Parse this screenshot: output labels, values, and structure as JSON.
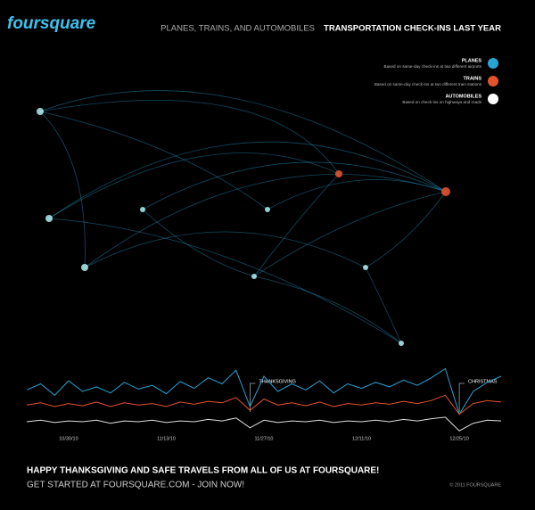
{
  "header": {
    "logo": "foursquare",
    "subtitle": "PLANES, TRAINS, AND AUTOMOBILES",
    "title": "TRANSPORTATION CHECK-INS LAST YEAR"
  },
  "legend": [
    {
      "name": "PLANES",
      "description": "Based on same-day check-ins at two different airports",
      "color": "#29a3d3"
    },
    {
      "name": "TRAINS",
      "description": "Based on same-day check-ins at two different train stations",
      "color": "#e2532b"
    },
    {
      "name": "AUTOMOBILES",
      "description": "Based on check-ins on highways and roads",
      "color": "#ffffff"
    }
  ],
  "chart_data": {
    "type": "line",
    "categories": [
      null,
      null,
      null,
      "10/30/10",
      null,
      null,
      null,
      null,
      null,
      null,
      "11/13/10",
      null,
      null,
      null,
      null,
      null,
      null,
      "11/27/10",
      null,
      null,
      null,
      null,
      null,
      null,
      "12/11/10",
      null,
      null,
      null,
      null,
      null,
      null,
      "12/25/10",
      null,
      null,
      null
    ],
    "ylim": [
      0,
      100
    ],
    "series": [
      {
        "name": "PLANES",
        "color": "#29a3d3",
        "values": [
          62,
          70,
          55,
          74,
          60,
          66,
          58,
          72,
          63,
          68,
          57,
          73,
          64,
          78,
          70,
          88,
          40,
          80,
          60,
          70,
          62,
          74,
          58,
          70,
          64,
          72,
          66,
          75,
          68,
          78,
          90,
          30,
          60,
          72,
          80
        ]
      },
      {
        "name": "TRAINS",
        "color": "#e2532b",
        "values": [
          42,
          45,
          40,
          44,
          41,
          46,
          40,
          45,
          42,
          44,
          40,
          46,
          43,
          47,
          45,
          52,
          35,
          50,
          42,
          45,
          41,
          46,
          40,
          44,
          42,
          45,
          43,
          47,
          44,
          48,
          55,
          30,
          44,
          48,
          46
        ]
      },
      {
        "name": "AUTOMOBILES",
        "color": "#dddddd",
        "values": [
          20,
          22,
          19,
          21,
          20,
          22,
          18,
          21,
          20,
          22,
          19,
          21,
          20,
          23,
          21,
          25,
          12,
          22,
          19,
          21,
          20,
          22,
          19,
          21,
          20,
          22,
          20,
          23,
          21,
          24,
          26,
          8,
          18,
          22,
          21
        ]
      }
    ],
    "annotations": [
      "THANKSGIVING",
      "CHRISTMAS"
    ]
  },
  "footer": {
    "message": "HAPPY THANKSGIVING AND SAFE TRAVELS FROM ALL OF US AT FOURSQUARE!",
    "cta": "GET STARTED AT FOURSQUARE.COM - JOIN NOW!",
    "copyright": "© 2011 FOURSQUARE"
  }
}
